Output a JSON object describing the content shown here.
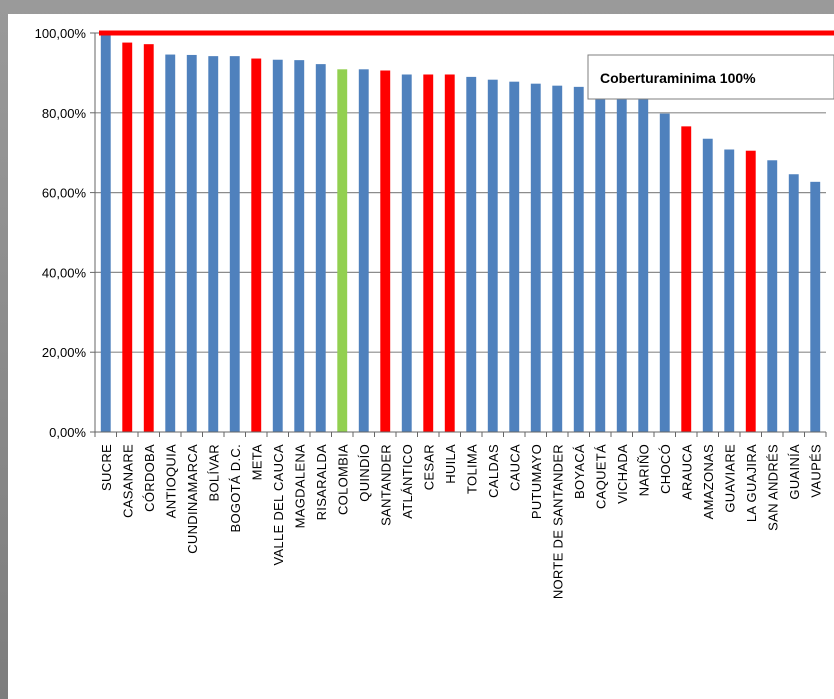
{
  "colors": {
    "bar_default": "#4f81bd",
    "bar_highlight": "#ff0000",
    "bar_national": "#92d050",
    "target_line": "#ff0000",
    "gridline": "#8c8c8c"
  },
  "legend": {
    "text": "Coberturaminima 100%",
    "placement": "top-right"
  },
  "chart_data": {
    "type": "bar",
    "title": "",
    "xlabel": "",
    "ylabel": "",
    "ylim": [
      0,
      100
    ],
    "yticks": [
      0,
      20,
      40,
      60,
      80,
      100
    ],
    "ytick_labels": [
      "0,00%",
      "20,00%",
      "40,00%",
      "60,00%",
      "80,00%",
      "100,00%"
    ],
    "grid": true,
    "target_line": {
      "value": 100,
      "label": "Coberturaminima 100%"
    },
    "categories": [
      "SUCRE",
      "CASANARE",
      "CÓRDOBA",
      "ANTIOQUIA",
      "CUNDINAMARCA",
      "BOLÍVAR",
      "BOGOTÁ D.C.",
      "META",
      "VALLE DEL CAUCA",
      "MAGDALENA",
      "RISARALDA",
      "COLOMBIA",
      "QUINDÍO",
      "SANTANDER",
      "ATLÁNTICO",
      "CESAR",
      "HUILA",
      "TOLIMA",
      "CALDAS",
      "CAUCA",
      "PUTUMAYO",
      "NORTE DE SANTANDER",
      "BOYACÁ",
      "CAQUETÁ",
      "VICHADA",
      "NARIÑO",
      "CHOCÓ",
      "ARAUCA",
      "AMAZONAS",
      "GUAVIARE",
      "LA GUAJIRA",
      "SAN ANDRÉS",
      "GUAINÍA",
      "VAUPÉS"
    ],
    "values": [
      99.5,
      97.6,
      97.2,
      94.6,
      94.5,
      94.2,
      94.2,
      93.6,
      93.3,
      93.2,
      92.2,
      90.9,
      90.9,
      90.6,
      89.6,
      89.6,
      89.6,
      89.0,
      88.3,
      87.8,
      87.3,
      86.8,
      86.5,
      84.9,
      83.8,
      83.8,
      79.8,
      76.6,
      73.5,
      70.8,
      70.5,
      68.1,
      64.6,
      62.7
    ],
    "bar_colors": [
      "blue",
      "red",
      "red",
      "blue",
      "blue",
      "blue",
      "blue",
      "red",
      "blue",
      "blue",
      "blue",
      "green",
      "blue",
      "red",
      "blue",
      "red",
      "red",
      "blue",
      "blue",
      "blue",
      "blue",
      "blue",
      "blue",
      "blue",
      "blue",
      "blue",
      "blue",
      "red",
      "blue",
      "blue",
      "red",
      "blue",
      "blue",
      "blue"
    ]
  }
}
